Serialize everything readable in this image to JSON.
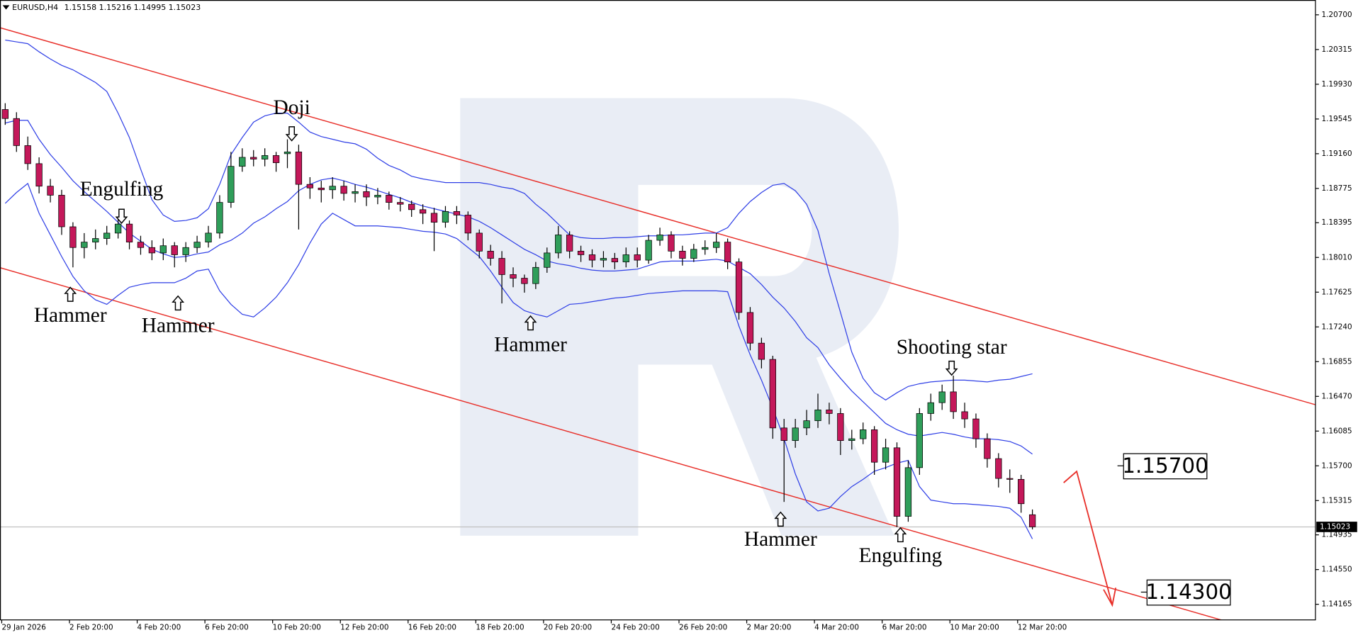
{
  "chart_data": {
    "type": "candlestick",
    "symbol": "EURUSD,H4",
    "categories": [
      "29 Jan 2026",
      null,
      null,
      null,
      null,
      null,
      "2 Feb 20:00",
      null,
      null,
      null,
      null,
      null,
      "4 Feb 20:00",
      null,
      null,
      null,
      null,
      null,
      "6 Feb 20:00",
      null,
      null,
      null,
      null,
      null,
      "10 Feb 20:00",
      null,
      null,
      null,
      null,
      null,
      "12 Feb 20:00",
      null,
      null,
      null,
      null,
      null,
      "16 Feb 20:00",
      null,
      null,
      null,
      null,
      null,
      "18 Feb 20:00",
      null,
      null,
      null,
      null,
      null,
      "20 Feb 20:00",
      null,
      null,
      null,
      null,
      null,
      "24 Feb 20:00",
      null,
      null,
      null,
      null,
      null,
      "26 Feb 20:00",
      null,
      null,
      null,
      null,
      null,
      "2 Mar 20:00",
      null,
      null,
      null,
      null,
      null,
      "4 Mar 20:00",
      null,
      null,
      null,
      null,
      null,
      "6 Mar 20:00",
      null,
      null,
      null,
      null,
      null,
      "10 Mar 20:00",
      null,
      null,
      null,
      null,
      null,
      "12 Mar 20:00",
      null
    ],
    "open": [
      1.1965,
      1.1955,
      1.1925,
      1.1905,
      1.188,
      1.187,
      1.1835,
      1.1812,
      1.1818,
      1.1822,
      1.1828,
      1.1838,
      1.1818,
      1.1812,
      1.1806,
      1.1814,
      1.1804,
      1.1812,
      1.1818,
      1.1828,
      1.1862,
      1.1902,
      1.1912,
      1.191,
      1.1914,
      1.1916,
      1.1918,
      1.1882,
      1.1878,
      1.1876,
      1.188,
      1.1872,
      1.1874,
      1.1868,
      1.187,
      1.1862,
      1.186,
      1.1854,
      1.185,
      1.184,
      1.1852,
      1.1848,
      1.1828,
      1.1808,
      1.18,
      1.1782,
      1.1778,
      1.1772,
      1.179,
      1.1806,
      1.1826,
      1.1808,
      1.1804,
      1.1798,
      1.18,
      1.1796,
      1.1804,
      1.1798,
      1.182,
      1.1826,
      1.1808,
      1.18,
      1.181,
      1.1812,
      1.1818,
      1.1796,
      1.174,
      1.1706,
      1.1688,
      1.1612,
      1.1598,
      1.1612,
      1.162,
      1.1632,
      1.1628,
      1.1598,
      1.16,
      1.161,
      1.1574,
      1.159,
      1.1514,
      1.1568,
      1.1628,
      1.164,
      1.1652,
      1.163,
      1.1622,
      1.16,
      1.1578,
      1.1556,
      1.1555,
      1.15158
    ],
    "high": [
      1.1972,
      1.1962,
      1.1935,
      1.1912,
      1.1888,
      1.1876,
      1.184,
      1.1828,
      1.1832,
      1.1836,
      1.1846,
      1.1842,
      1.1825,
      1.182,
      1.1822,
      1.1818,
      1.1818,
      1.1825,
      1.1836,
      1.187,
      1.1918,
      1.1922,
      1.192,
      1.1922,
      1.1918,
      1.1932,
      1.1926,
      1.189,
      1.1886,
      1.189,
      1.1886,
      1.1882,
      1.1882,
      1.1878,
      1.1874,
      1.1868,
      1.1864,
      1.186,
      1.1856,
      1.1858,
      1.1858,
      1.1852,
      1.1832,
      1.1815,
      1.1808,
      1.179,
      1.1782,
      1.1796,
      1.1812,
      1.1836,
      1.183,
      1.1814,
      1.181,
      1.1808,
      1.1806,
      1.1812,
      1.1812,
      1.1826,
      1.1834,
      1.183,
      1.1814,
      1.1816,
      1.182,
      1.1828,
      1.1822,
      1.18,
      1.1746,
      1.1712,
      1.1692,
      1.1622,
      1.1622,
      1.1632,
      1.165,
      1.164,
      1.1634,
      1.161,
      1.1618,
      1.1614,
      1.16,
      1.1596,
      1.1576,
      1.1634,
      1.165,
      1.166,
      1.167,
      1.164,
      1.1628,
      1.1606,
      1.1584,
      1.1566,
      1.156,
      1.15216
    ],
    "low": [
      1.1948,
      1.1918,
      1.1898,
      1.1872,
      1.1862,
      1.1826,
      1.179,
      1.18,
      1.181,
      1.1815,
      1.1822,
      1.181,
      1.1804,
      1.1798,
      1.1798,
      1.179,
      1.1796,
      1.1806,
      1.1812,
      1.1822,
      1.1856,
      1.1896,
      1.1902,
      1.1902,
      1.1896,
      1.19,
      1.1832,
      1.1866,
      1.1862,
      1.1866,
      1.1864,
      1.1862,
      1.1858,
      1.186,
      1.1854,
      1.1852,
      1.1846,
      1.1838,
      1.1808,
      1.1834,
      1.1838,
      1.182,
      1.18,
      1.1792,
      1.175,
      1.1768,
      1.1762,
      1.1766,
      1.1784,
      1.18,
      1.18,
      1.1796,
      1.179,
      1.179,
      1.1788,
      1.179,
      1.179,
      1.1794,
      1.1814,
      1.18,
      1.1792,
      1.1796,
      1.1804,
      1.1806,
      1.1788,
      1.1732,
      1.1698,
      1.1678,
      1.16,
      1.153,
      1.159,
      1.1604,
      1.1612,
      1.1616,
      1.1582,
      1.1588,
      1.1594,
      1.156,
      1.1566,
      1.1502,
      1.1508,
      1.156,
      1.162,
      1.1632,
      1.1622,
      1.1612,
      1.159,
      1.1568,
      1.1546,
      1.154,
      1.1518,
      1.14995
    ],
    "close": [
      1.1955,
      1.1925,
      1.1905,
      1.188,
      1.187,
      1.1835,
      1.1812,
      1.1818,
      1.1822,
      1.1828,
      1.1838,
      1.1818,
      1.1812,
      1.1806,
      1.1814,
      1.1804,
      1.1812,
      1.1818,
      1.1828,
      1.1862,
      1.1902,
      1.1912,
      1.191,
      1.1914,
      1.1906,
      1.1918,
      1.1882,
      1.1878,
      1.1876,
      1.188,
      1.1872,
      1.1874,
      1.1868,
      1.187,
      1.1862,
      1.186,
      1.1854,
      1.185,
      1.184,
      1.1852,
      1.1848,
      1.1828,
      1.1808,
      1.18,
      1.1782,
      1.1778,
      1.1772,
      1.179,
      1.1806,
      1.1826,
      1.1808,
      1.1804,
      1.1798,
      1.18,
      1.1796,
      1.1804,
      1.1798,
      1.182,
      1.1826,
      1.1808,
      1.18,
      1.181,
      1.1812,
      1.1818,
      1.1796,
      1.174,
      1.1706,
      1.1688,
      1.1612,
      1.1598,
      1.1612,
      1.162,
      1.1632,
      1.1628,
      1.1598,
      1.16,
      1.161,
      1.1574,
      1.159,
      1.1514,
      1.1568,
      1.1628,
      1.164,
      1.1652,
      1.163,
      1.1622,
      1.16,
      1.1578,
      1.1556,
      1.1555,
      1.1528,
      1.15023
    ],
    "up_color": "#2f9e5a",
    "down_color": "#c4185a",
    "bands": [
      {
        "color": "#2f3fe6",
        "values": [
          1.2042,
          1.204,
          1.2038,
          1.2029,
          1.2021,
          1.2014,
          1.2009,
          1.2002,
          1.1995,
          1.1985,
          1.1961,
          1.1934,
          1.1899,
          1.1865,
          1.1848,
          1.1841,
          1.1842,
          1.1845,
          1.1855,
          1.1882,
          1.1915,
          1.1934,
          1.1951,
          1.1958,
          1.1961,
          1.1961,
          1.1951,
          1.194,
          1.1935,
          1.1932,
          1.1929,
          1.1927,
          1.1921,
          1.1911,
          1.1903,
          1.1898,
          1.1891,
          1.1888,
          1.1886,
          1.1884,
          1.1884,
          1.1884,
          1.1884,
          1.1882,
          1.1879,
          1.1877,
          1.1872,
          1.186,
          1.185,
          1.1838,
          1.1826,
          1.1823,
          1.1822,
          1.1822,
          1.1823,
          1.1823,
          1.1824,
          1.1825,
          1.1825,
          1.1826,
          1.1826,
          1.1827,
          1.1828,
          1.1828,
          1.1834,
          1.185,
          1.1863,
          1.1873,
          1.1881,
          1.1883,
          1.1875,
          1.186,
          1.1831,
          1.1783,
          1.174,
          1.1696,
          1.1667,
          1.1651,
          1.1643,
          1.1651,
          1.1658,
          1.1661,
          1.1663,
          1.1664,
          1.1665,
          1.1665,
          1.1664,
          1.1663,
          1.1665,
          1.1666,
          1.1669,
          1.1672
        ]
      },
      {
        "color": "#2f3fe6",
        "values": [
          1.195,
          1.1953,
          1.1953,
          1.1932,
          1.1915,
          1.1901,
          1.1886,
          1.1874,
          1.1863,
          1.1852,
          1.184,
          1.1828,
          1.1819,
          1.181,
          1.1805,
          1.1801,
          1.1802,
          1.1805,
          1.1807,
          1.1815,
          1.182,
          1.1828,
          1.1839,
          1.1846,
          1.1855,
          1.1863,
          1.1875,
          1.1882,
          1.1887,
          1.1889,
          1.1886,
          1.1882,
          1.1879,
          1.1875,
          1.1871,
          1.1867,
          1.1862,
          1.1858,
          1.1855,
          1.1852,
          1.1849,
          1.1846,
          1.1841,
          1.1834,
          1.1826,
          1.1818,
          1.181,
          1.1804,
          1.1797,
          1.1794,
          1.1792,
          1.1789,
          1.1787,
          1.1786,
          1.1786,
          1.1787,
          1.1788,
          1.1792,
          1.1796,
          1.1797,
          1.1797,
          1.1797,
          1.1798,
          1.1799,
          1.1797,
          1.179,
          1.1783,
          1.1771,
          1.1757,
          1.1745,
          1.173,
          1.1712,
          1.1701,
          1.1682,
          1.1667,
          1.1653,
          1.1641,
          1.1629,
          1.1617,
          1.161,
          1.1605,
          1.1603,
          1.1605,
          1.1607,
          1.1605,
          1.1602,
          1.16,
          1.16,
          1.1599,
          1.1597,
          1.1592,
          1.1583
        ]
      },
      {
        "color": "#2f3fe6",
        "values": [
          1.1861,
          1.1873,
          1.1883,
          1.185,
          1.1826,
          1.1802,
          1.178,
          1.1764,
          1.1754,
          1.1749,
          1.1759,
          1.1768,
          1.1771,
          1.1773,
          1.1773,
          1.1773,
          1.1778,
          1.1786,
          1.1788,
          1.1764,
          1.1749,
          1.1738,
          1.1735,
          1.1745,
          1.1757,
          1.1773,
          1.1793,
          1.1817,
          1.1838,
          1.185,
          1.1843,
          1.1836,
          1.1836,
          1.1836,
          1.1835,
          1.1834,
          1.1832,
          1.183,
          1.1829,
          1.1827,
          1.1822,
          1.1812,
          1.1802,
          1.1786,
          1.1768,
          1.1751,
          1.1742,
          1.1738,
          1.1735,
          1.1742,
          1.1749,
          1.175,
          1.1752,
          1.1754,
          1.1756,
          1.1757,
          1.1759,
          1.1761,
          1.1762,
          1.1763,
          1.1764,
          1.1764,
          1.1764,
          1.1764,
          1.1763,
          1.1725,
          1.1693,
          1.1665,
          1.1634,
          1.16,
          1.1561,
          1.153,
          1.152,
          1.1523,
          1.1536,
          1.1547,
          1.1555,
          1.1564,
          1.1568,
          1.1573,
          1.1576,
          1.1547,
          1.1532,
          1.153,
          1.1528,
          1.1528,
          1.1527,
          1.1526,
          1.1525,
          1.1523,
          1.1513,
          1.1489
        ]
      }
    ],
    "channel": [
      {
        "color": "#e8302a",
        "x": [
          0,
          116
        ],
        "y": [
          1.2054,
          1.1638
        ]
      },
      {
        "color": "#e8302a",
        "x": [
          0,
          100
        ],
        "y": [
          1.1788,
          1.1427
        ]
      }
    ],
    "levels": [
      {
        "value": 1.157,
        "label": "1.15700"
      },
      {
        "value": 1.143,
        "label": "1.14300"
      }
    ],
    "annotations": [
      "Engulfing",
      "Hammer",
      "Hammer",
      "Doji",
      "Hammer",
      "Hammer",
      "Engulfing",
      "Shooting star"
    ],
    "ylim": [
      1.13992,
      1.20864
    ],
    "yticks": [
      {
        "value": 1.207,
        "label": "1.20700"
      },
      {
        "value": 1.20315,
        "label": "1.20315"
      },
      {
        "value": 1.1993,
        "label": "1.19930"
      },
      {
        "value": 1.19545,
        "label": "1.19545"
      },
      {
        "value": 1.1916,
        "label": "1.19160"
      },
      {
        "value": 1.18775,
        "label": "1.18775"
      },
      {
        "value": 1.18395,
        "label": "1.18395"
      },
      {
        "value": 1.1801,
        "label": "1.18010"
      },
      {
        "value": 1.17625,
        "label": "1.17625"
      },
      {
        "value": 1.1724,
        "label": "1.17240"
      },
      {
        "value": 1.16855,
        "label": "1.16855"
      },
      {
        "value": 1.1647,
        "label": "1.16470"
      },
      {
        "value": 1.16085,
        "label": "1.16085"
      },
      {
        "value": 1.157,
        "label": "1.15700"
      },
      {
        "value": 1.15315,
        "label": "1.15315"
      },
      {
        "value": 1.14935,
        "label": "1.14935"
      },
      {
        "value": 1.1455,
        "label": "1.14550"
      },
      {
        "value": 1.14165,
        "label": "1.14165"
      }
    ],
    "grid": false
  }
}
